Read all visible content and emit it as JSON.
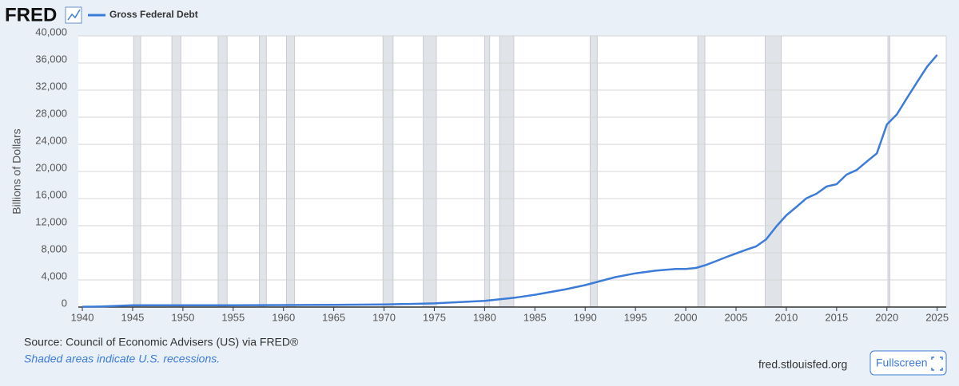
{
  "chart_data": {
    "type": "line",
    "logo": "FRED",
    "y_label": "Billions of Dollars",
    "source": "Source: Council of Economic Advisers (US) via FRED®",
    "note": "Shaded areas indicate U.S. recessions.",
    "site": "fred.stlouisfed.org",
    "button": "Fullscreen",
    "x": [
      1940,
      1941,
      1942,
      1943,
      1944,
      1945,
      1946,
      1950,
      1955,
      1960,
      1965,
      1970,
      1975,
      1980,
      1983,
      1985,
      1988,
      1990,
      1993,
      1995,
      1997,
      1999,
      2000,
      2001,
      2002,
      2003,
      2004,
      2005,
      2006,
      2007,
      2008,
      2009,
      2010,
      2011,
      2012,
      2013,
      2014,
      2015,
      2016,
      2017,
      2018,
      2019,
      2020,
      2021,
      2022,
      2023,
      2024,
      2025
    ],
    "series": [
      {
        "name": "Gross Federal Debt",
        "color": "#3c7cd8",
        "values": [
          50,
          58,
          79,
          142,
          204,
          260,
          269,
          257,
          274,
          290,
          322,
          381,
          542,
          909,
          1372,
          1817,
          2602,
          3233,
          4411,
          4974,
          5369,
          5606,
          5629,
          5770,
          6198,
          6760,
          7355,
          7905,
          8451,
          8951,
          9986,
          11876,
          13529,
          14764,
          16051,
          16719,
          17794,
          18120,
          19540,
          20206,
          21462,
          22669,
          26945,
          28428,
          30838,
          33167,
          35460,
          37200
        ]
      }
    ],
    "recessions": [
      [
        1945.1,
        1945.8
      ],
      [
        1948.9,
        1949.8
      ],
      [
        1953.5,
        1954.4
      ],
      [
        1957.6,
        1958.3
      ],
      [
        1960.3,
        1961.1
      ],
      [
        1969.9,
        1970.9
      ],
      [
        1973.9,
        1975.2
      ],
      [
        1980.0,
        1980.5
      ],
      [
        1981.5,
        1982.9
      ],
      [
        1990.5,
        1991.2
      ],
      [
        2001.2,
        2001.9
      ],
      [
        2007.9,
        2009.5
      ],
      [
        2020.1,
        2020.3
      ]
    ],
    "xlim": [
      1939.6,
      2025.9
    ],
    "xticks": [
      1940,
      1945,
      1950,
      1955,
      1960,
      1965,
      1970,
      1975,
      1980,
      1985,
      1990,
      1995,
      2000,
      2005,
      2010,
      2015,
      2020,
      2025
    ],
    "ylim": [
      0,
      40000
    ],
    "yticks": [
      0,
      {
        "value": 4000,
        "label": "4,000"
      },
      {
        "value": 8000,
        "label": "8,000"
      },
      {
        "value": 12000,
        "label": "12,000"
      },
      {
        "value": 16000,
        "label": "16,000"
      },
      {
        "value": 20000,
        "label": "20,000"
      },
      {
        "value": 24000,
        "label": "24,000"
      },
      {
        "value": 28000,
        "label": "28,000"
      },
      {
        "value": 32000,
        "label": "32,000"
      },
      {
        "value": 36000,
        "label": "36,000"
      },
      {
        "value": 40000,
        "label": "40,000"
      }
    ],
    "grid": true
  }
}
